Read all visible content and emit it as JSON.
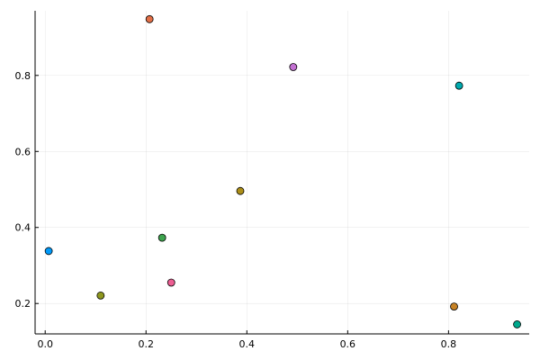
{
  "chart_data": {
    "type": "scatter",
    "title": "",
    "xlabel": "",
    "ylabel": "",
    "xlim": [
      -0.02,
      0.96
    ],
    "ylim": [
      0.12,
      0.97
    ],
    "xticks": [
      0.0,
      0.2,
      0.4,
      0.6,
      0.8
    ],
    "xtick_labels": [
      "0.0",
      "0.2",
      "0.4",
      "0.6",
      "0.8"
    ],
    "yticks": [
      0.2,
      0.4,
      0.6,
      0.8
    ],
    "ytick_labels": [
      "0.2",
      "0.4",
      "0.6",
      "0.8"
    ],
    "grid": true,
    "legend": "none",
    "series": [
      {
        "x": 0.007,
        "y": 0.338,
        "color": "#009AFA"
      },
      {
        "x": 0.207,
        "y": 0.948,
        "color": "#E36F47"
      },
      {
        "x": 0.232,
        "y": 0.373,
        "color": "#3EA44E"
      },
      {
        "x": 0.492,
        "y": 0.822,
        "color": "#C371D2"
      },
      {
        "x": 0.387,
        "y": 0.496,
        "color": "#AC8E18"
      },
      {
        "x": 0.821,
        "y": 0.773,
        "color": "#00AAAE"
      },
      {
        "x": 0.25,
        "y": 0.255,
        "color": "#ED5E93"
      },
      {
        "x": 0.811,
        "y": 0.192,
        "color": "#C68225"
      },
      {
        "x": 0.936,
        "y": 0.145,
        "color": "#00A98D"
      },
      {
        "x": 0.11,
        "y": 0.221,
        "color": "#8E971E"
      }
    ]
  }
}
